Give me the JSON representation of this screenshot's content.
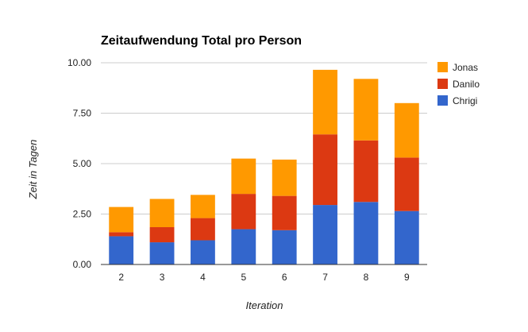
{
  "chart_data": {
    "type": "bar",
    "stacked": true,
    "title": "Zeitaufwendung Total pro Person",
    "xlabel": "Iteration",
    "ylabel": "Zeit in Tagen",
    "categories": [
      "2",
      "3",
      "4",
      "5",
      "6",
      "7",
      "8",
      "9"
    ],
    "ylim": [
      0,
      10
    ],
    "yticks": [
      "0.00",
      "2.50",
      "5.00",
      "7.50",
      "10.00"
    ],
    "ytick_values": [
      0,
      2.5,
      5,
      7.5,
      10
    ],
    "grid": true,
    "legend_position": "right",
    "series": [
      {
        "name": "Chrigi",
        "color": "#3366cc",
        "values": [
          1.4,
          1.1,
          1.2,
          1.75,
          1.7,
          2.95,
          3.1,
          2.65
        ]
      },
      {
        "name": "Danilo",
        "color": "#dc3912",
        "values": [
          0.2,
          0.75,
          1.1,
          1.75,
          1.7,
          3.5,
          3.05,
          2.65
        ]
      },
      {
        "name": "Jonas",
        "color": "#ff9900",
        "values": [
          1.25,
          1.4,
          1.15,
          1.75,
          1.8,
          3.2,
          3.05,
          2.7
        ]
      }
    ],
    "legend_order": [
      "Jonas",
      "Danilo",
      "Chrigi"
    ]
  }
}
